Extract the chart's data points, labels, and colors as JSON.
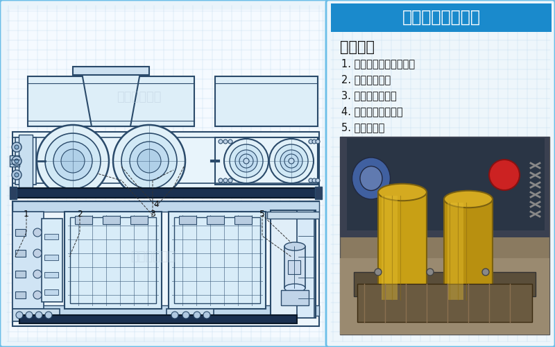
{
  "bg_color": "#f0f8ff",
  "left_panel_bg": "#eaf4fb",
  "left_panel_border": "#6bbee8",
  "right_panel_bg": "#eef6fb",
  "right_panel_border": "#6bbee8",
  "title_bg": "#1a8acc",
  "title_text": "皮带对辊机结构图",
  "title_color": "#ffffff",
  "section_header": "主要部件",
  "items": [
    "1. 调节螺栓（调节弹簧）",
    "2. 弹簧（压力）",
    "3. 辊皮（易损件）",
    "4. 刮板（处理湿料）",
    "5. 电机减速机"
  ],
  "item_color": "#111111",
  "header_color": "#111111",
  "watermark_text": "巩义金联机械",
  "watermark_color": "#bbccdd",
  "grid_color": "#c0d8ee",
  "line_color": "#2a4a6a",
  "line_color2": "#3a5a7a",
  "bg_white": "#f8fbff",
  "diag_bg": "#f0f8ff"
}
